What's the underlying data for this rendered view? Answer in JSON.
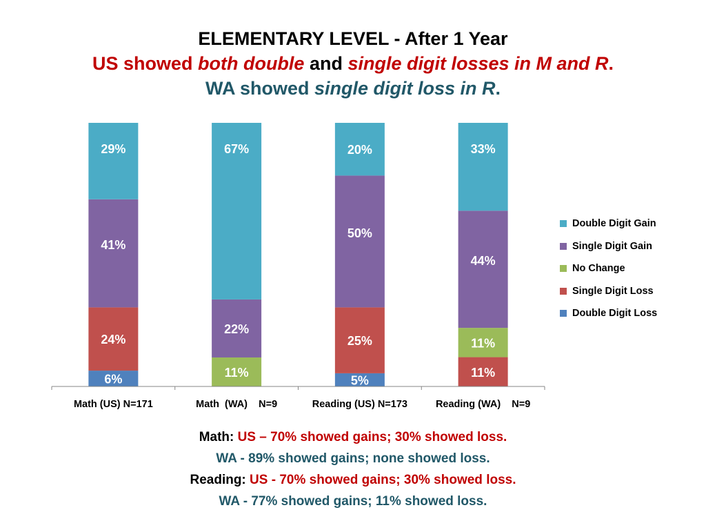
{
  "title": {
    "line1": "ELEMENTARY LEVEL - After 1 Year",
    "line2": {
      "a": "US showed ",
      "b": "both double",
      "c": " and ",
      "d": "single digit losses in M and R",
      "e": "."
    },
    "line3": {
      "a": "WA showed ",
      "b": "single digit loss in R",
      "c": "."
    }
  },
  "colors": {
    "double_digit_gain": "#4bacc6",
    "single_digit_gain": "#8064a2",
    "no_change": "#9bbb59",
    "single_digit_loss": "#c0504d",
    "double_digit_loss": "#4f81bd"
  },
  "chart_data": {
    "type": "bar",
    "stacked": true,
    "stack_mode": "percent",
    "categories": [
      "Math (US) N=171",
      "Math  (WA)    N=9",
      "Reading (US) N=173",
      "Reading (WA)    N=9"
    ],
    "series": [
      {
        "name": "Double Digit Loss",
        "color": "#4f81bd",
        "values": [
          6,
          0,
          5,
          0
        ],
        "labels": [
          "6%",
          "",
          "5%",
          ""
        ]
      },
      {
        "name": "Single Digit Loss",
        "color": "#c0504d",
        "values": [
          24,
          0,
          25,
          11
        ],
        "labels": [
          "24%",
          "",
          "25%",
          "11%"
        ]
      },
      {
        "name": "No Change",
        "color": "#9bbb59",
        "values": [
          0,
          11,
          0,
          11
        ],
        "labels": [
          "",
          "11%",
          "",
          "11%"
        ]
      },
      {
        "name": "Single Digit Gain",
        "color": "#8064a2",
        "values": [
          41,
          22,
          50,
          44
        ],
        "labels": [
          "41%",
          "22%",
          "50%",
          "44%"
        ]
      },
      {
        "name": "Double Digit Gain",
        "color": "#4bacc6",
        "values": [
          29,
          67,
          20,
          33
        ],
        "labels": [
          "29%",
          "67%",
          "20%",
          "33%"
        ]
      }
    ],
    "legend": [
      "Double Digit Gain",
      "Single Digit Gain",
      "No Change",
      "Single Digit Loss",
      "Double Digit Loss"
    ],
    "legend_position": "right",
    "grid": false
  },
  "notes": {
    "math_label": "Math: ",
    "math_us": "US – 70% showed gains; 30% showed loss.",
    "math_wa": "WA - 89% showed gains; none showed loss.",
    "reading_label": "Reading: ",
    "reading_us": "US - 70% showed gains; 30% showed loss.",
    "reading_wa": "WA - 77% showed gains; 11% showed loss."
  }
}
